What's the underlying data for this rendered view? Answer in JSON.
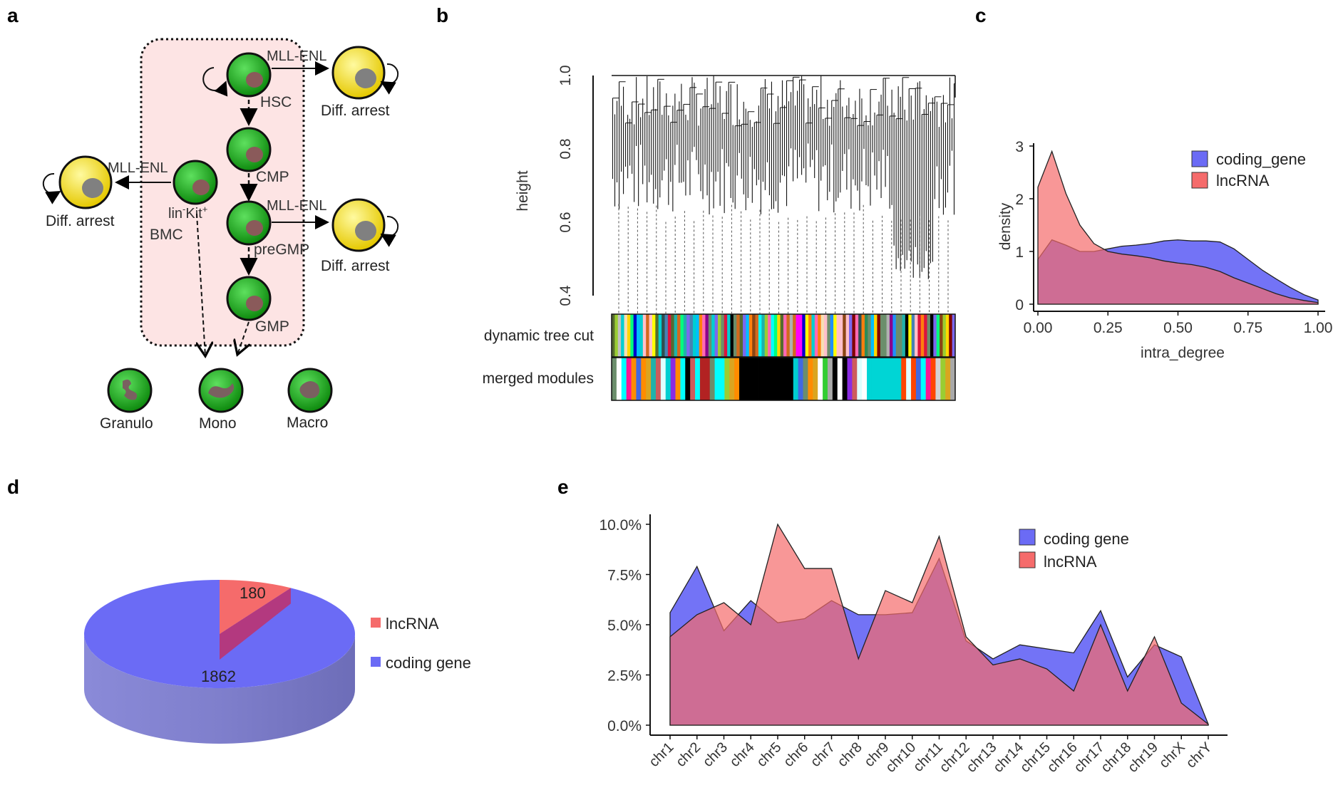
{
  "panels": {
    "a": {
      "letter": "a",
      "cells": {
        "hsc": "HSC",
        "cmp": "CMP",
        "pregmp": "preGMP",
        "gmp": "GMP",
        "bmc_line1": "lin",
        "bmc_sup1": "-",
        "bmc_kit": "Kit",
        "bmc_sup2": "+",
        "bmc_line2": "BMC",
        "granulo": "Granulo",
        "mono": "Mono",
        "macro": "Macro"
      },
      "oncogene": "MLL-ENL",
      "arrest": "Diff. arrest",
      "colors": {
        "progenitor": "#1db31d",
        "arrested": "#f2e200",
        "nucleus": "#8a5a5a",
        "arrest_nucleus": "#808080",
        "box": "#fde4e4"
      }
    },
    "b": {
      "letter": "b",
      "ylabel": "height",
      "yticks": [
        "1.0",
        "0.8",
        "0.6",
        "0.4"
      ],
      "row_labels": [
        "dynamic tree cut",
        "merged modules"
      ],
      "dynamic_palette": [
        "#6b8e6b",
        "#a0522d",
        "#ff7f0e",
        "#4682b4",
        "#2e8b57",
        "#b0b0b0",
        "#20b2aa",
        "#ffc0cb",
        "#8b008b",
        "#9acd32",
        "#0000cd",
        "#ff69b4",
        "#556b2f",
        "#00ced1",
        "#dc143c",
        "#f5deb3",
        "#000000",
        "#ff00ff",
        "#ffff00",
        "#800000",
        "#00ff7f",
        "#7b68ee",
        "#00bfff",
        "#d2691e",
        "#c0c0c0",
        "#2f4f4f",
        "#ffd700",
        "#00ffff",
        "#8b4513",
        "#1e90ff"
      ],
      "merged_palette": [
        "#6b8e6b",
        "#ff4500",
        "#ffffff",
        "#e0ffff",
        "#cd5c5c",
        "#8a2be2",
        "#00ffff",
        "#000000",
        "#a9a9a9",
        "#32cd32",
        "#ff1493",
        "#4169e1",
        "#d3d3d3",
        "#00ced1",
        "#8b4513",
        "#ff8c00",
        "#9acd32",
        "#20b2aa",
        "#b22222",
        "#daa520"
      ]
    },
    "c": {
      "letter": "c",
      "chart_data": {
        "type": "area",
        "title": "",
        "xlabel": "intra_degree",
        "ylabel": "density",
        "xlim": [
          0,
          1
        ],
        "ylim": [
          0,
          3
        ],
        "xticks": [
          "0.00",
          "0.25",
          "0.50",
          "0.75",
          "1.00"
        ],
        "yticks": [
          "0",
          "1",
          "2",
          "3"
        ],
        "legend_position": "top-right",
        "x": [
          0,
          0.05,
          0.1,
          0.15,
          0.2,
          0.25,
          0.3,
          0.35,
          0.4,
          0.45,
          0.5,
          0.55,
          0.6,
          0.65,
          0.7,
          0.75,
          0.8,
          0.85,
          0.9,
          0.95,
          1.0
        ],
        "series": [
          {
            "name": "coding_gene",
            "color": "#6b6bf5",
            "values": [
              0.85,
              1.22,
              1.12,
              1.0,
              1.0,
              1.05,
              1.1,
              1.12,
              1.15,
              1.2,
              1.22,
              1.2,
              1.2,
              1.18,
              1.05,
              0.85,
              0.65,
              0.48,
              0.32,
              0.18,
              0.08
            ]
          },
          {
            "name": "lncRNA",
            "color": "#f56b6b",
            "values": [
              2.22,
              2.9,
              2.1,
              1.5,
              1.15,
              1.0,
              0.95,
              0.92,
              0.88,
              0.82,
              0.78,
              0.75,
              0.7,
              0.62,
              0.5,
              0.4,
              0.3,
              0.2,
              0.12,
              0.07,
              0.03
            ]
          }
        ]
      }
    },
    "d": {
      "letter": "d",
      "chart_data": {
        "type": "pie",
        "categories": [
          "lncRNA",
          "coding gene"
        ],
        "values": [
          180,
          1862
        ],
        "labels": [
          "180",
          "1862"
        ],
        "colors": [
          "#f56b6b",
          "#6b6bf5"
        ],
        "legend_position": "right"
      }
    },
    "e": {
      "letter": "e",
      "chart_data": {
        "type": "area",
        "title": "",
        "xlabel": "",
        "ylabel": "",
        "ylim": [
          0,
          10
        ],
        "yticks": [
          "0.0%",
          "2.5%",
          "5.0%",
          "7.5%",
          "10.0%"
        ],
        "legend_position": "top-right",
        "categories": [
          "chr1",
          "chr2",
          "chr3",
          "chr4",
          "chr5",
          "chr6",
          "chr7",
          "chr8",
          "chr9",
          "chr10",
          "chr11",
          "chr12",
          "chr13",
          "chr14",
          "chr15",
          "chr16",
          "chr17",
          "chr18",
          "chr19",
          "chrX",
          "chrY"
        ],
        "series": [
          {
            "name": "coding gene",
            "color": "#6b6bf5",
            "values": [
              5.6,
              7.9,
              4.7,
              6.2,
              5.1,
              5.3,
              6.2,
              5.5,
              5.5,
              5.6,
              8.3,
              4.2,
              3.3,
              4.0,
              3.8,
              3.6,
              5.7,
              2.4,
              4.0,
              3.4,
              0.05
            ]
          },
          {
            "name": "lncRNA",
            "color": "#f56b6b",
            "values": [
              4.4,
              5.5,
              6.1,
              5.0,
              10.0,
              7.8,
              7.8,
              3.3,
              6.7,
              6.1,
              9.4,
              4.4,
              3.0,
              3.3,
              2.8,
              1.7,
              5.0,
              1.7,
              4.4,
              1.1,
              0.05
            ]
          }
        ]
      }
    }
  }
}
